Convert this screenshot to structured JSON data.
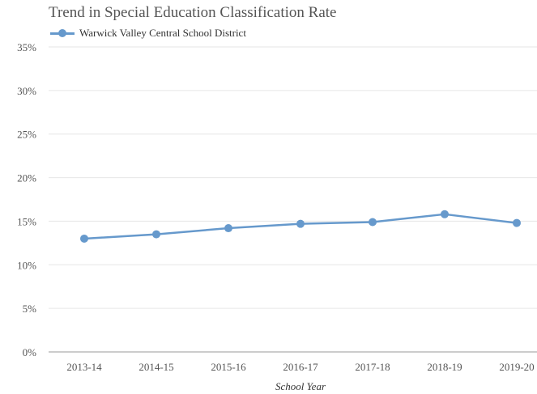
{
  "chart_data": {
    "type": "line",
    "title": "Trend in Special Education Classification Rate",
    "xlabel": "School Year",
    "ylabel": "",
    "categories": [
      "2013-14",
      "2014-15",
      "2015-16",
      "2016-17",
      "2017-18",
      "2018-19",
      "2019-20"
    ],
    "series": [
      {
        "name": "Warwick Valley Central School District",
        "values": [
          13.0,
          13.5,
          14.2,
          14.7,
          14.9,
          15.8,
          14.8
        ]
      }
    ],
    "ylim": [
      0,
      35
    ],
    "yticks": [
      0,
      5,
      10,
      15,
      20,
      25,
      30,
      35
    ],
    "ytick_labels": [
      "0%",
      "5%",
      "10%",
      "15%",
      "20%",
      "25%",
      "30%",
      "35%"
    ],
    "grid": true,
    "legend_position": "top-left",
    "colors": {
      "series": "#6699cc",
      "grid": "#e6e6e6",
      "axis": "#999999"
    }
  }
}
